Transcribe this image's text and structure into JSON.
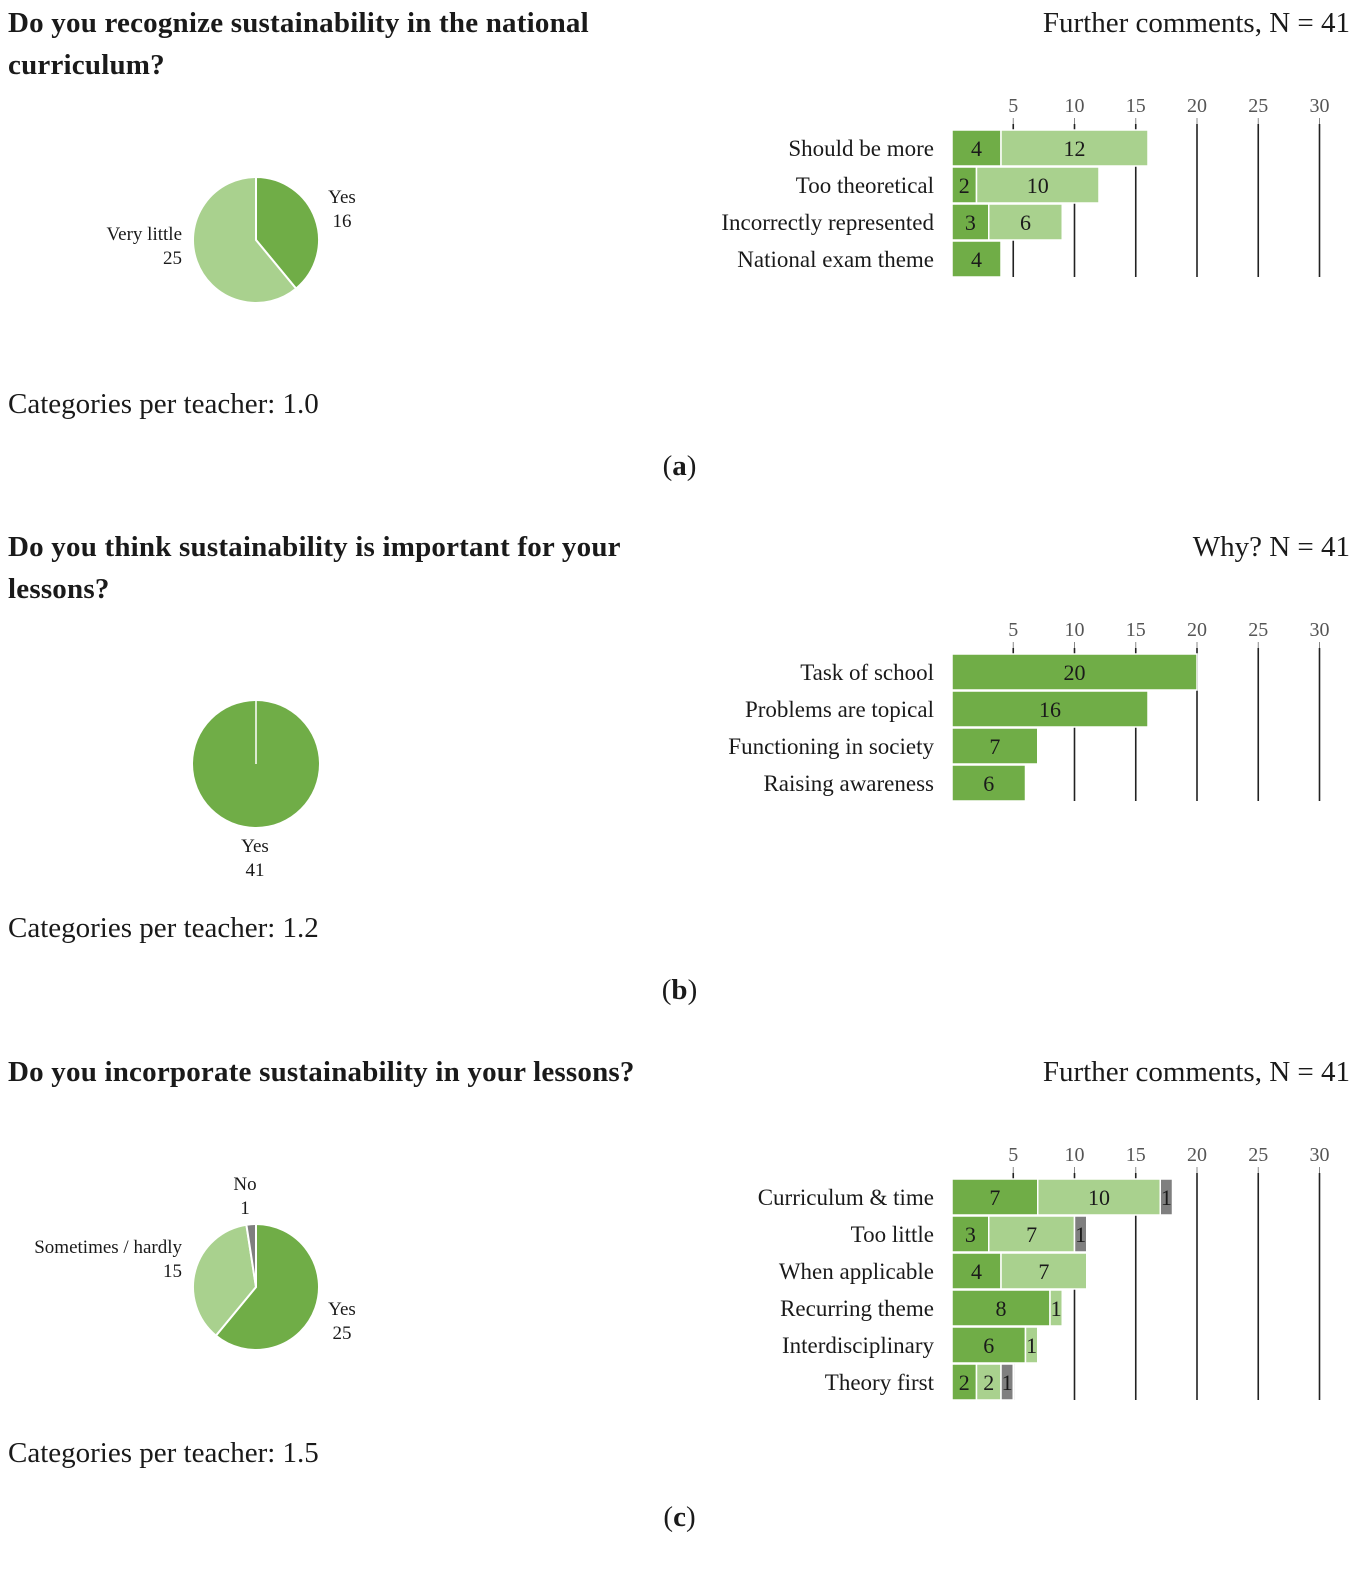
{
  "colors": {
    "dark_green": "#70ad47",
    "light_green": "#a9d18e",
    "gray": "#7f7f7f",
    "grid": "#222222"
  },
  "panels": [
    {
      "question": "Do you recognize sustainability in the national curriculum?",
      "right_title": "Further comments, N = 41",
      "categories_text": "Categories per teacher: 1.0",
      "caption_open": "(",
      "caption_letter": "a",
      "caption_close": ")"
    },
    {
      "question": "Do you think sustainability is important for your lessons?",
      "right_title": "Why? N = 41",
      "categories_text": "Categories per teacher: 1.2",
      "caption_open": "(",
      "caption_letter": "b",
      "caption_close": ")"
    },
    {
      "question": "Do you incorporate sustainability in your lessons?",
      "right_title": "Further comments, N = 41",
      "categories_text": "Categories per teacher: 1.5",
      "caption_open": "(",
      "caption_letter": "c",
      "caption_close": ")"
    }
  ],
  "chart_data": [
    {
      "type": "pie",
      "panel": "a",
      "slices": [
        {
          "label": "Yes",
          "value": 16,
          "color": "#70ad47"
        },
        {
          "label": "Very little",
          "value": 25,
          "color": "#a9d18e"
        }
      ]
    },
    {
      "type": "bar",
      "panel": "a",
      "orientation": "horizontal",
      "stacked": true,
      "title": "Further comments, N = 41",
      "x_ticks": [
        5,
        10,
        15,
        20,
        25,
        30
      ],
      "xlim": [
        0,
        30
      ],
      "categories": [
        "Should be more",
        "Too theoretical",
        "Incorrectly represented",
        "National exam theme"
      ],
      "series": [
        {
          "name": "dark",
          "color": "#70ad47",
          "values": [
            4,
            2,
            3,
            4
          ]
        },
        {
          "name": "light",
          "color": "#a9d18e",
          "values": [
            12,
            10,
            6,
            0
          ]
        },
        {
          "name": "gray",
          "color": "#7f7f7f",
          "values": [
            0,
            0,
            0,
            0
          ]
        }
      ]
    },
    {
      "type": "pie",
      "panel": "b",
      "slices": [
        {
          "label": "Yes",
          "value": 41,
          "color": "#70ad47"
        }
      ]
    },
    {
      "type": "bar",
      "panel": "b",
      "orientation": "horizontal",
      "stacked": true,
      "title": "Why? N = 41",
      "x_ticks": [
        5,
        10,
        15,
        20,
        25,
        30
      ],
      "xlim": [
        0,
        30
      ],
      "categories": [
        "Task of school",
        "Problems are topical",
        "Functioning in society",
        "Raising awareness"
      ],
      "series": [
        {
          "name": "dark",
          "color": "#70ad47",
          "values": [
            20,
            16,
            7,
            6
          ]
        },
        {
          "name": "light",
          "color": "#a9d18e",
          "values": [
            0,
            0,
            0,
            0
          ]
        },
        {
          "name": "gray",
          "color": "#7f7f7f",
          "values": [
            0,
            0,
            0,
            0
          ]
        }
      ]
    },
    {
      "type": "pie",
      "panel": "c",
      "slices": [
        {
          "label": "Yes",
          "value": 25,
          "color": "#70ad47"
        },
        {
          "label": "Sometimes / hardly",
          "value": 15,
          "color": "#a9d18e"
        },
        {
          "label": "No",
          "value": 1,
          "color": "#7f7f7f"
        }
      ]
    },
    {
      "type": "bar",
      "panel": "c",
      "orientation": "horizontal",
      "stacked": true,
      "title": "Further comments, N = 41",
      "x_ticks": [
        5,
        10,
        15,
        20,
        25,
        30
      ],
      "xlim": [
        0,
        30
      ],
      "categories": [
        "Curriculum & time",
        "Too little",
        "When applicable",
        "Recurring theme",
        "Interdisciplinary",
        "Theory first"
      ],
      "series": [
        {
          "name": "dark",
          "color": "#70ad47",
          "values": [
            7,
            3,
            4,
            8,
            6,
            2
          ]
        },
        {
          "name": "light",
          "color": "#a9d18e",
          "values": [
            10,
            7,
            7,
            1,
            1,
            2
          ]
        },
        {
          "name": "gray",
          "color": "#7f7f7f",
          "values": [
            1,
            1,
            0,
            0,
            0,
            1
          ]
        }
      ]
    }
  ]
}
